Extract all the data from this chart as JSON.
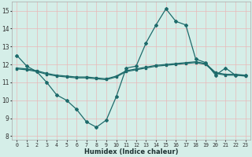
{
  "title": "",
  "xlabel": "Humidex (Indice chaleur)",
  "x": [
    0,
    1,
    2,
    3,
    4,
    5,
    6,
    7,
    8,
    9,
    10,
    11,
    12,
    13,
    14,
    15,
    16,
    17,
    18,
    19,
    20,
    21,
    22,
    23
  ],
  "line1": [
    12.5,
    11.9,
    11.6,
    11.0,
    10.3,
    10.0,
    9.5,
    8.8,
    8.5,
    8.9,
    10.2,
    11.8,
    11.9,
    13.2,
    14.2,
    15.1,
    14.4,
    14.2,
    12.3,
    12.1,
    11.4,
    11.8,
    11.4,
    11.4
  ],
  "line2": [
    11.8,
    11.75,
    11.65,
    11.5,
    11.4,
    11.35,
    11.3,
    11.3,
    11.25,
    11.2,
    11.35,
    11.65,
    11.75,
    11.85,
    11.95,
    12.0,
    12.05,
    12.1,
    12.15,
    12.05,
    11.55,
    11.45,
    11.45,
    11.4
  ],
  "line3": [
    11.75,
    11.7,
    11.6,
    11.45,
    11.35,
    11.3,
    11.25,
    11.25,
    11.2,
    11.15,
    11.3,
    11.6,
    11.7,
    11.8,
    11.9,
    11.95,
    12.0,
    12.05,
    12.1,
    12.0,
    11.5,
    11.4,
    11.4,
    11.35
  ],
  "line_color": "#1e6b6b",
  "bg_color": "#d5eee8",
  "grid_color": "#e8b8b8",
  "ylim": [
    7.8,
    15.5
  ],
  "xlim": [
    -0.5,
    23.5
  ],
  "yticks": [
    8,
    9,
    10,
    11,
    12,
    13,
    14,
    15
  ],
  "xticks": [
    0,
    1,
    2,
    3,
    4,
    5,
    6,
    7,
    8,
    9,
    10,
    11,
    12,
    13,
    14,
    15,
    16,
    17,
    18,
    19,
    20,
    21,
    22,
    23
  ]
}
